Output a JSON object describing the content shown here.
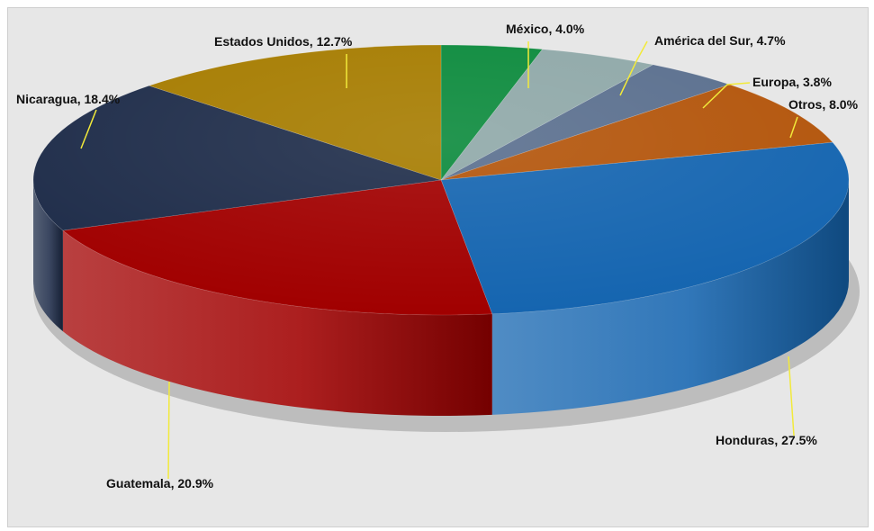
{
  "chart_data": {
    "type": "pie",
    "style": "3d-tilted",
    "title": "",
    "start_angle_deg": -90,
    "direction": "clockwise",
    "slices": [
      {
        "label": "México",
        "value": 4.0,
        "display": "México, 4.0%",
        "color": "#0b8a3c"
      },
      {
        "label": "América del Sur",
        "value": 4.7,
        "display": "América del Sur, 4.7%",
        "color": "#8fa8a8"
      },
      {
        "label": "Europa",
        "value": 3.8,
        "display": "Europa, 3.8%",
        "color": "#5a6f8e"
      },
      {
        "label": "Otros",
        "value": 8.0,
        "display": "Otros, 8.0%",
        "color": "#b3550b"
      },
      {
        "label": "Honduras",
        "value": 27.5,
        "display": "Honduras, 27.5%",
        "color": "#1565b0"
      },
      {
        "label": "Guatemala",
        "value": 20.9,
        "display": "Guatemala, 20.9%",
        "color": "#a10000"
      },
      {
        "label": "Nicaragua",
        "value": 18.4,
        "display": "Nicaragua, 18.4%",
        "color": "#1f2d4a"
      },
      {
        "label": "Estados Unidos",
        "value": 12.7,
        "display": "Estados Unidos, 12.7%",
        "color": "#a67c00"
      }
    ],
    "leader_line_color": "#f2ea3a",
    "background_color": "#e7e7e7"
  }
}
